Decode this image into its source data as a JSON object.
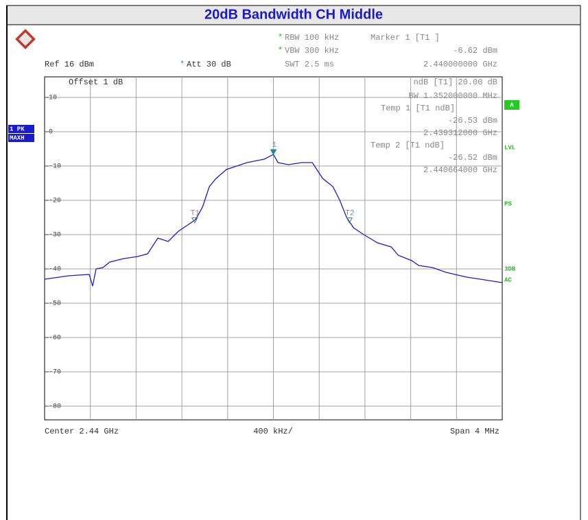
{
  "chart_data": {
    "type": "line",
    "title": "20dB Bandwidth CH Middle",
    "xlim": [
      2.438,
      2.442
    ],
    "ylim": [
      -84,
      16
    ],
    "yticks": [
      10,
      0,
      -10,
      -20,
      -30,
      -40,
      -50,
      -60,
      -70,
      -80
    ],
    "grid": true,
    "x_labels": [
      "Center 2.44 GHz",
      "400 kHz/",
      "Span 4 MHz"
    ],
    "x": [
      2.438,
      2.43821,
      2.43839,
      2.43842,
      2.43845,
      2.43851,
      2.43857,
      2.43869,
      2.43881,
      2.4389,
      2.43899,
      2.43908,
      2.43917,
      2.43926,
      2.43932,
      2.43938,
      2.43944,
      2.4395,
      2.43959,
      2.43968,
      2.43977,
      2.43986,
      2.43992,
      2.44,
      2.44004,
      2.44013,
      2.44025,
      2.44034,
      2.44043,
      2.44052,
      2.44058,
      2.44064,
      2.4407,
      2.44079,
      2.44091,
      2.44103,
      2.44109,
      2.44121,
      2.44127,
      2.44139,
      2.44151,
      2.44169,
      2.44181,
      2.442
    ],
    "series": [
      {
        "color": "#1a1acd",
        "values": [
          -43,
          -42,
          -41.6,
          -45,
          -40,
          -39.6,
          -38,
          -37,
          -36.4,
          -35.6,
          -31,
          -32,
          -29,
          -27,
          -25.6,
          -22,
          -16,
          -13.6,
          -11,
          -10,
          -9,
          -8.4,
          -8,
          -6.62,
          -9,
          -9.6,
          -9,
          -9,
          -13.6,
          -16,
          -20,
          -25,
          -28,
          -30,
          -32.4,
          -33.6,
          -36,
          -37.6,
          -39,
          -39.6,
          -41,
          -42.4,
          -43,
          -44
        ]
      }
    ],
    "markers": [
      {
        "label": "1",
        "x": 2.44,
        "y": -6.62
      },
      {
        "label": "T1",
        "x": 2.439312,
        "y": -26.53
      },
      {
        "label": "T2",
        "x": 2.440664,
        "y": -26.52
      }
    ],
    "annotations": [
      "*",
      "RBW 100 kHz",
      "*",
      "VBW 300 kHz",
      "SWT 2.5 ms",
      "Marker 1 [T1 ]",
      "-6.62 dBm",
      "2.440000000 GHz",
      "Ref  16 dBm",
      "*",
      "Att  30 dB",
      "Offset  1 dB",
      "ndB [T1]   20.00 dB",
      "BW   1.352000000 MHz",
      "Temp 1 [T1 ndB]",
      "-26.53 dBm",
      "2.439312000 GHz",
      "Temp 2 [T1 ndB]",
      "-26.52 dBm",
      "2.440664000 GHz"
    ],
    "side_labels": [
      "1 PK",
      "MAXH",
      "A",
      "LVL",
      "PS",
      "3DB",
      "AC"
    ]
  }
}
